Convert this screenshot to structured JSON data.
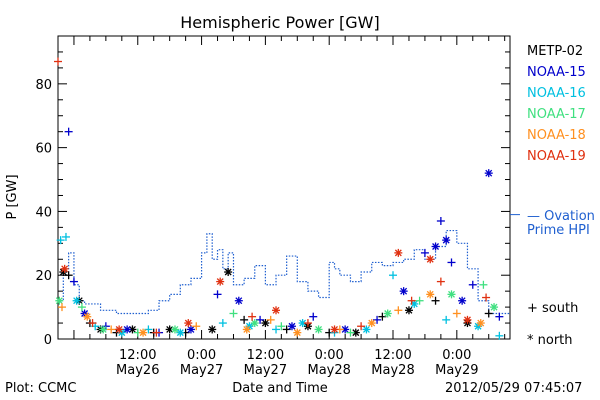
{
  "chart_data": {
    "type": "scatter",
    "title": "Hemispheric Power [GW]",
    "ylabel": "P [GW]",
    "xlabel": "Date and Time",
    "xlim": [
      "2012-05-25T21:00",
      "2012-05-29T10:00"
    ],
    "ylim": [
      0,
      95
    ],
    "yticks": [
      0,
      20,
      40,
      60,
      80
    ],
    "xticks": [
      {
        "at": "2012-05-26T12:00",
        "top": "12:00",
        "bottom": "May26"
      },
      {
        "at": "2012-05-27T00:00",
        "top": "0:00",
        "bottom": "May27"
      },
      {
        "at": "2012-05-27T12:00",
        "top": "12:00",
        "bottom": "May27"
      },
      {
        "at": "2012-05-28T00:00",
        "top": "0:00",
        "bottom": "May28"
      },
      {
        "at": "2012-05-28T12:00",
        "top": "12:00",
        "bottom": "May28"
      },
      {
        "at": "2012-05-29T00:00",
        "top": "0:00",
        "bottom": "May29"
      }
    ],
    "grid": false,
    "legend_position": "right",
    "series": [
      {
        "name": "METP-02",
        "color": "#000000",
        "points": [
          [
            "2012-05-25T22:00",
            21,
            "north"
          ],
          [
            "2012-05-25T23:00",
            20,
            "south"
          ],
          [
            "2012-05-26T01:00",
            12,
            "north"
          ],
          [
            "2012-05-26T03:00",
            5,
            "south"
          ],
          [
            "2012-05-26T05:00",
            3,
            "north"
          ],
          [
            "2012-05-26T08:00",
            2,
            "south"
          ],
          [
            "2012-05-26T11:00",
            3,
            "north"
          ],
          [
            "2012-05-26T15:00",
            2,
            "south"
          ],
          [
            "2012-05-26T18:00",
            3,
            "north"
          ],
          [
            "2012-05-26T21:00",
            2,
            "south"
          ],
          [
            "2012-05-27T02:00",
            3,
            "north"
          ],
          [
            "2012-05-27T05:00",
            21,
            "north"
          ],
          [
            "2012-05-27T08:00",
            6,
            "south"
          ],
          [
            "2012-05-27T12:00",
            5,
            "north"
          ],
          [
            "2012-05-27T16:00",
            3,
            "south"
          ],
          [
            "2012-05-27T20:00",
            4,
            "north"
          ],
          [
            "2012-05-28T00:00",
            2,
            "south"
          ],
          [
            "2012-05-28T05:00",
            2,
            "north"
          ],
          [
            "2012-05-28T10:00",
            7,
            "south"
          ],
          [
            "2012-05-28T15:00",
            9,
            "north"
          ],
          [
            "2012-05-28T20:00",
            12,
            "south"
          ],
          [
            "2012-05-29T02:00",
            5,
            "north"
          ],
          [
            "2012-05-29T06:00",
            8,
            "south"
          ]
        ]
      },
      {
        "name": "NOAA-15",
        "color": "#0000cc",
        "points": [
          [
            "2012-05-25T23:00",
            65,
            "south"
          ],
          [
            "2012-05-26T00:00",
            18,
            "south"
          ],
          [
            "2012-05-26T02:00",
            8,
            "north"
          ],
          [
            "2012-05-26T06:00",
            4,
            "south"
          ],
          [
            "2012-05-26T10:00",
            3,
            "north"
          ],
          [
            "2012-05-26T16:00",
            2,
            "south"
          ],
          [
            "2012-05-26T22:00",
            3,
            "north"
          ],
          [
            "2012-05-27T03:00",
            14,
            "south"
          ],
          [
            "2012-05-27T07:00",
            12,
            "north"
          ],
          [
            "2012-05-27T11:00",
            6,
            "south"
          ],
          [
            "2012-05-27T17:00",
            4,
            "north"
          ],
          [
            "2012-05-27T21:00",
            7,
            "south"
          ],
          [
            "2012-05-28T03:00",
            3,
            "north"
          ],
          [
            "2012-05-28T09:00",
            6,
            "south"
          ],
          [
            "2012-05-28T14:00",
            15,
            "north"
          ],
          [
            "2012-05-28T18:00",
            27,
            "south"
          ],
          [
            "2012-05-28T20:00",
            29,
            "north"
          ],
          [
            "2012-05-28T21:00",
            37,
            "south"
          ],
          [
            "2012-05-28T22:00",
            31,
            "north"
          ],
          [
            "2012-05-28T23:00",
            24,
            "south"
          ],
          [
            "2012-05-29T01:00",
            12,
            "north"
          ],
          [
            "2012-05-29T03:00",
            17,
            "south"
          ],
          [
            "2012-05-29T06:00",
            52,
            "north"
          ],
          [
            "2012-05-29T08:00",
            7,
            "south"
          ]
        ]
      },
      {
        "name": "NOAA-16",
        "color": "#00c0e0",
        "points": [
          [
            "2012-05-25T21:30",
            31,
            "south"
          ],
          [
            "2012-05-25T22:30",
            32,
            "south"
          ],
          [
            "2012-05-26T00:30",
            12,
            "north"
          ],
          [
            "2012-05-26T04:00",
            4,
            "south"
          ],
          [
            "2012-05-26T09:00",
            2,
            "north"
          ],
          [
            "2012-05-26T14:00",
            3,
            "south"
          ],
          [
            "2012-05-26T20:00",
            2,
            "north"
          ],
          [
            "2012-05-27T04:00",
            5,
            "south"
          ],
          [
            "2012-05-27T09:00",
            4,
            "north"
          ],
          [
            "2012-05-27T14:00",
            3,
            "south"
          ],
          [
            "2012-05-27T19:00",
            5,
            "north"
          ],
          [
            "2012-05-28T01:00",
            2,
            "south"
          ],
          [
            "2012-05-28T07:00",
            3,
            "north"
          ],
          [
            "2012-05-28T12:00",
            20,
            "south"
          ],
          [
            "2012-05-28T16:00",
            11,
            "north"
          ],
          [
            "2012-05-28T22:00",
            6,
            "south"
          ],
          [
            "2012-05-29T04:00",
            4,
            "north"
          ],
          [
            "2012-05-29T08:00",
            1,
            "south"
          ]
        ]
      },
      {
        "name": "NOAA-17",
        "color": "#40e080",
        "points": [
          [
            "2012-05-25T21:15",
            12,
            "north"
          ],
          [
            "2012-05-26T01:30",
            10,
            "south"
          ],
          [
            "2012-05-26T05:30",
            3,
            "north"
          ],
          [
            "2012-05-26T12:00",
            2,
            "south"
          ],
          [
            "2012-05-26T19:00",
            3,
            "north"
          ],
          [
            "2012-05-27T06:00",
            8,
            "south"
          ],
          [
            "2012-05-27T10:00",
            5,
            "north"
          ],
          [
            "2012-05-27T15:00",
            4,
            "south"
          ],
          [
            "2012-05-27T22:00",
            3,
            "north"
          ],
          [
            "2012-05-28T04:00",
            2,
            "south"
          ],
          [
            "2012-05-28T11:00",
            8,
            "north"
          ],
          [
            "2012-05-28T17:00",
            12,
            "south"
          ],
          [
            "2012-05-28T23:00",
            14,
            "north"
          ],
          [
            "2012-05-29T05:00",
            17,
            "south"
          ],
          [
            "2012-05-29T07:00",
            10,
            "north"
          ]
        ]
      },
      {
        "name": "NOAA-18",
        "color": "#ff9020",
        "points": [
          [
            "2012-05-25T21:45",
            10,
            "south"
          ],
          [
            "2012-05-26T02:30",
            7,
            "north"
          ],
          [
            "2012-05-26T07:00",
            3,
            "south"
          ],
          [
            "2012-05-26T13:00",
            2,
            "north"
          ],
          [
            "2012-05-26T23:00",
            4,
            "south"
          ],
          [
            "2012-05-27T08:30",
            3,
            "north"
          ],
          [
            "2012-05-27T13:00",
            6,
            "south"
          ],
          [
            "2012-05-27T18:00",
            2,
            "north"
          ],
          [
            "2012-05-28T02:00",
            3,
            "south"
          ],
          [
            "2012-05-28T08:00",
            5,
            "north"
          ],
          [
            "2012-05-28T13:00",
            9,
            "south"
          ],
          [
            "2012-05-28T19:00",
            14,
            "north"
          ],
          [
            "2012-05-29T00:00",
            8,
            "south"
          ],
          [
            "2012-05-29T04:30",
            5,
            "north"
          ]
        ]
      },
      {
        "name": "NOAA-19",
        "color": "#e03010",
        "points": [
          [
            "2012-05-25T21:00",
            87,
            "south"
          ],
          [
            "2012-05-25T22:15",
            22,
            "north"
          ],
          [
            "2012-05-26T03:30",
            5,
            "south"
          ],
          [
            "2012-05-26T08:30",
            3,
            "north"
          ],
          [
            "2012-05-26T15:30",
            2,
            "south"
          ],
          [
            "2012-05-26T21:30",
            5,
            "north"
          ],
          [
            "2012-05-27T03:30",
            18,
            "north"
          ],
          [
            "2012-05-27T09:30",
            7,
            "south"
          ],
          [
            "2012-05-27T14:00",
            9,
            "north"
          ],
          [
            "2012-05-27T20:00",
            5,
            "south"
          ],
          [
            "2012-05-28T01:00",
            3,
            "north"
          ],
          [
            "2012-05-28T06:00",
            4,
            "south"
          ],
          [
            "2012-05-28T13:00",
            27,
            "north"
          ],
          [
            "2012-05-28T15:30",
            12,
            "south"
          ],
          [
            "2012-05-28T19:00",
            25,
            "north"
          ],
          [
            "2012-05-28T21:00",
            18,
            "south"
          ],
          [
            "2012-05-29T02:00",
            6,
            "north"
          ],
          [
            "2012-05-29T05:30",
            13,
            "south"
          ]
        ]
      }
    ],
    "ovation": {
      "name_line1": "— Ovation",
      "name_line2": "Prime HPI",
      "marker_value": 39,
      "color": "#2060d0",
      "steps": [
        [
          "2012-05-25T21:00",
          12
        ],
        [
          "2012-05-25T22:00",
          22
        ],
        [
          "2012-05-25T23:00",
          27
        ],
        [
          "2012-05-26T00:00",
          17
        ],
        [
          "2012-05-26T01:00",
          12
        ],
        [
          "2012-05-26T02:00",
          11
        ],
        [
          "2012-05-26T05:00",
          9
        ],
        [
          "2012-05-26T08:00",
          8
        ],
        [
          "2012-05-26T11:00",
          8
        ],
        [
          "2012-05-26T14:00",
          9
        ],
        [
          "2012-05-26T16:00",
          12
        ],
        [
          "2012-05-26T18:00",
          14
        ],
        [
          "2012-05-26T20:00",
          17
        ],
        [
          "2012-05-26T22:00",
          19
        ],
        [
          "2012-05-27T00:00",
          27
        ],
        [
          "2012-05-27T01:00",
          33
        ],
        [
          "2012-05-27T02:00",
          25
        ],
        [
          "2012-05-27T03:00",
          28
        ],
        [
          "2012-05-27T04:00",
          22
        ],
        [
          "2012-05-27T05:00",
          27
        ],
        [
          "2012-05-27T06:00",
          17
        ],
        [
          "2012-05-27T08:00",
          19
        ],
        [
          "2012-05-27T10:00",
          23
        ],
        [
          "2012-05-27T12:00",
          17
        ],
        [
          "2012-05-27T14:00",
          20
        ],
        [
          "2012-05-27T16:00",
          26
        ],
        [
          "2012-05-27T18:00",
          18
        ],
        [
          "2012-05-27T20:00",
          15
        ],
        [
          "2012-05-27T22:00",
          13
        ],
        [
          "2012-05-28T00:00",
          24
        ],
        [
          "2012-05-28T01:00",
          22
        ],
        [
          "2012-05-28T02:00",
          20
        ],
        [
          "2012-05-28T04:00",
          18
        ],
        [
          "2012-05-28T06:00",
          21
        ],
        [
          "2012-05-28T08:00",
          24
        ],
        [
          "2012-05-28T10:00",
          23
        ],
        [
          "2012-05-28T12:00",
          24
        ],
        [
          "2012-05-28T14:00",
          25
        ],
        [
          "2012-05-28T16:00",
          28
        ],
        [
          "2012-05-28T18:00",
          25
        ],
        [
          "2012-05-28T20:00",
          29
        ],
        [
          "2012-05-28T22:00",
          34
        ],
        [
          "2012-05-29T00:00",
          30
        ],
        [
          "2012-05-29T02:00",
          22
        ],
        [
          "2012-05-29T04:00",
          12
        ],
        [
          "2012-05-29T06:00",
          8
        ],
        [
          "2012-05-29T10:00",
          8
        ]
      ]
    },
    "markers_legend": {
      "south": "+ south",
      "north": "* north"
    }
  },
  "footer": {
    "plot_by": "Plot: CCMC",
    "timestamp": "2012/05/29 07:45:07"
  }
}
